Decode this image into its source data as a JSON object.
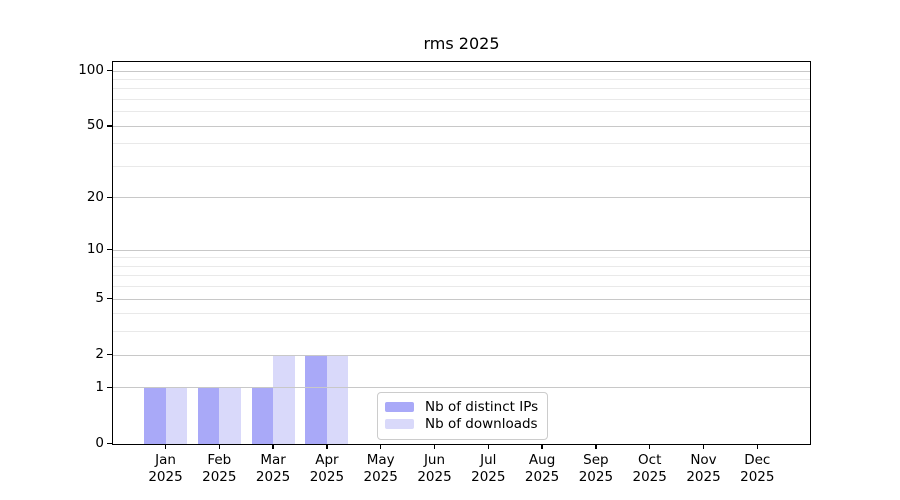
{
  "chart_data": {
    "type": "bar",
    "title": "rms 2025",
    "categories": [
      "Jan 2025",
      "Feb 2025",
      "Mar 2025",
      "Apr 2025",
      "May 2025",
      "Jun 2025",
      "Jul 2025",
      "Aug 2025",
      "Sep 2025",
      "Oct 2025",
      "Nov 2025",
      "Dec 2025"
    ],
    "series": [
      {
        "name": "Nb of distinct IPs",
        "color": "#a9a9f8",
        "values": [
          1,
          1,
          1,
          2,
          0,
          0,
          0,
          0,
          0,
          0,
          0,
          0
        ]
      },
      {
        "name": "Nb of downloads",
        "color": "#d9d9fa",
        "values": [
          1,
          1,
          2,
          2,
          0,
          0,
          0,
          0,
          0,
          0,
          0,
          0
        ]
      }
    ],
    "xlabel": "",
    "ylabel": "",
    "y_scale": "log10(value+1)",
    "ylim": [
      0,
      112
    ],
    "y_tick_values": [
      0,
      1,
      2,
      5,
      10,
      20,
      50,
      100
    ],
    "y_tick_labels": [
      "0",
      "1",
      "2",
      "5",
      "10",
      "20",
      "50",
      "100"
    ],
    "y_minor_gridline_values": [
      3,
      4,
      6,
      7,
      8,
      9,
      30,
      40,
      60,
      70,
      80,
      90
    ],
    "grid": true,
    "legend_position": "lower center"
  },
  "colors": {
    "major_grid": "#c8c8c8",
    "minor_grid": "#e9e9e9",
    "axis": "#000000",
    "text": "#000000",
    "legend_border": "#cccccc"
  }
}
